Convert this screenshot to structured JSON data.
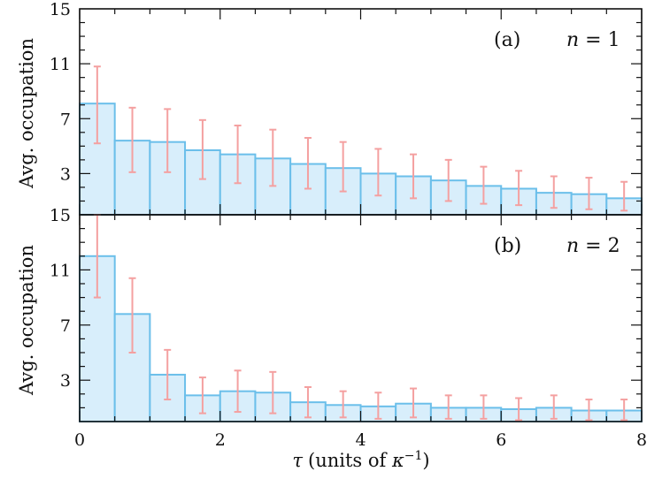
{
  "chart_data": [
    {
      "type": "bar",
      "panel_tag": "(a)",
      "n_label": {
        "var": "n",
        "eq": " = 1"
      },
      "ylabel": "Avg. occupation",
      "ylim": [
        0,
        15
      ],
      "yticks": [
        3,
        7,
        11,
        15
      ],
      "bin_edges": [
        0,
        0.5,
        1,
        1.5,
        2,
        2.5,
        3,
        3.5,
        4,
        4.5,
        5,
        5.5,
        6,
        6.5,
        7,
        7.5,
        8
      ],
      "values": [
        8.1,
        5.4,
        5.3,
        4.7,
        4.4,
        4.1,
        3.7,
        3.4,
        3.0,
        2.8,
        2.5,
        2.1,
        1.9,
        1.6,
        1.5,
        1.2
      ],
      "err_low": [
        5.2,
        3.1,
        3.1,
        2.6,
        2.3,
        2.1,
        1.9,
        1.7,
        1.4,
        1.2,
        1.0,
        0.8,
        0.7,
        0.5,
        0.4,
        0.3
      ],
      "err_high": [
        10.8,
        7.8,
        7.7,
        6.9,
        6.5,
        6.2,
        5.6,
        5.3,
        4.8,
        4.4,
        4.0,
        3.5,
        3.2,
        2.8,
        2.7,
        2.4
      ]
    },
    {
      "type": "bar",
      "panel_tag": "(b)",
      "n_label": {
        "var": "n",
        "eq": " = 2"
      },
      "ylabel": "Avg. occupation",
      "ylim": [
        0,
        15
      ],
      "yticks": [
        3,
        7,
        11,
        15
      ],
      "bin_edges": [
        0,
        0.5,
        1,
        1.5,
        2,
        2.5,
        3,
        3.5,
        4,
        4.5,
        5,
        5.5,
        6,
        6.5,
        7,
        7.5,
        8
      ],
      "values": [
        12.0,
        7.8,
        3.4,
        1.9,
        2.2,
        2.1,
        1.4,
        1.2,
        1.1,
        1.3,
        1.0,
        1.0,
        0.9,
        1.0,
        0.8,
        0.8
      ],
      "err_low": [
        9.0,
        5.0,
        1.6,
        0.6,
        0.7,
        0.6,
        0.3,
        0.3,
        0.2,
        0.3,
        0.2,
        0.2,
        0.1,
        0.2,
        0.1,
        0.1
      ],
      "err_high": [
        15.0,
        10.4,
        5.2,
        3.2,
        3.7,
        3.6,
        2.5,
        2.2,
        2.1,
        2.4,
        1.9,
        1.9,
        1.7,
        1.9,
        1.6,
        1.6
      ]
    }
  ],
  "x_axis": {
    "label_tau": "τ",
    "label_rest": "(units of ",
    "label_kappa": "κ",
    "label_sup": "−1",
    "label_close": ")",
    "xlim": [
      0,
      8
    ],
    "xticks": [
      "0",
      "2",
      "4",
      "6",
      "8"
    ]
  },
  "colors": {
    "bar_fill": "#d8eefb",
    "bar_edge": "#6bbfea",
    "error_bar": "#f4a0a0",
    "axis": "#111111"
  }
}
